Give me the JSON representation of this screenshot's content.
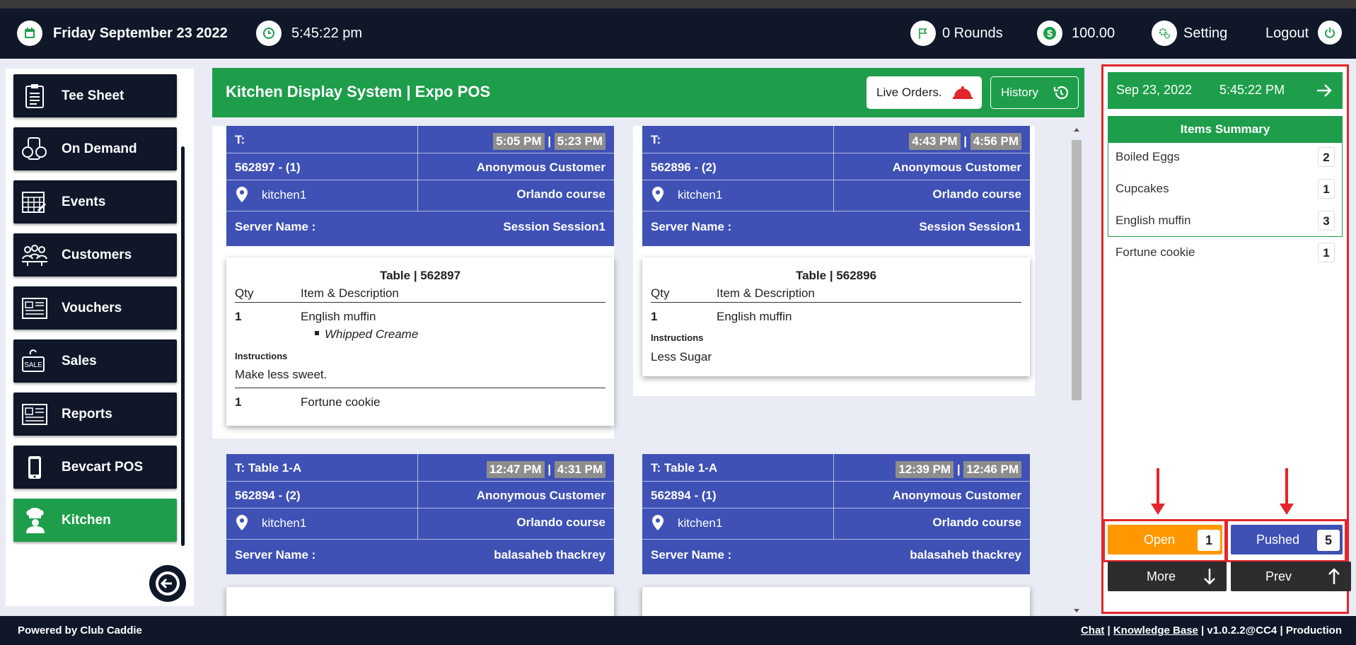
{
  "header": {
    "date": "Friday September 23 2022",
    "time": "5:45:22 pm",
    "rounds": "0 Rounds",
    "balance": "100.00",
    "setting_label": "Setting",
    "logout_label": "Logout"
  },
  "sidebar": {
    "items": [
      {
        "label": "Tee Sheet",
        "icon": "clipboard-icon"
      },
      {
        "label": "On Demand",
        "icon": "on-demand-icon"
      },
      {
        "label": "Events",
        "icon": "calendar-grid-icon"
      },
      {
        "label": "Customers",
        "icon": "customers-icon"
      },
      {
        "label": "Vouchers",
        "icon": "voucher-icon"
      },
      {
        "label": "Sales",
        "icon": "sale-tag-icon"
      },
      {
        "label": "Reports",
        "icon": "report-icon"
      },
      {
        "label": "Bevcart POS",
        "icon": "mobile-icon"
      },
      {
        "label": "Kitchen",
        "icon": "chef-icon",
        "active": true
      }
    ]
  },
  "main": {
    "title": "Kitchen Display System | Expo POS",
    "live_orders_label": "Live Orders.",
    "history_label": "History",
    "orders": [
      {
        "t": "T:",
        "time_in": "5:05 PM",
        "time_out": "5:23 PM",
        "order_id": "562897 - (1)",
        "customer": "Anonymous Customer",
        "location": "kitchen1",
        "course": "Orlando course",
        "server_label": "Server Name :",
        "server": "Session Session1",
        "ticket_title_prefix": "Table",
        "ticket_title_id": "562897",
        "qty_header": "Qty",
        "item_header": "Item & Description",
        "items": [
          {
            "qty": "1",
            "name": "English muffin",
            "modifier": "Whipped Creame"
          }
        ],
        "instructions_label": "Instructions",
        "instructions": "Make less sweet.",
        "extra_items": [
          {
            "qty": "1",
            "name": "Fortune cookie"
          }
        ]
      },
      {
        "t": "T:",
        "time_in": "4:43 PM",
        "time_out": "4:56 PM",
        "order_id": "562896 - (2)",
        "customer": "Anonymous Customer",
        "location": "kitchen1",
        "course": "Orlando course",
        "server_label": "Server Name :",
        "server": "Session Session1",
        "ticket_title_prefix": "Table",
        "ticket_title_id": "562896",
        "qty_header": "Qty",
        "item_header": "Item & Description",
        "items": [
          {
            "qty": "1",
            "name": "English muffin"
          }
        ],
        "instructions_label": "Instructions",
        "instructions": "Less Sugar"
      },
      {
        "t": "T: Table 1-A",
        "time_in": "12:47 PM",
        "time_out": "4:31 PM",
        "order_id": "562894 - (2)",
        "customer": "Anonymous Customer",
        "location": "kitchen1",
        "course": "Orlando course",
        "server_label": "Server Name :",
        "server": "balasaheb thackrey"
      },
      {
        "t": "T: Table 1-A",
        "time_in": "12:39 PM",
        "time_out": "12:46 PM",
        "order_id": "562894 - (1)",
        "customer": "Anonymous Customer",
        "location": "kitchen1",
        "course": "Orlando course",
        "server_label": "Server Name :",
        "server": "balasaheb thackrey"
      }
    ]
  },
  "right_panel": {
    "date": "Sep 23, 2022",
    "time": "5:45:22 PM",
    "summary_title": "Items Summary",
    "summary": [
      {
        "name": "Boiled Eggs",
        "qty": "2"
      },
      {
        "name": "Cupcakes",
        "qty": "1"
      },
      {
        "name": "English muffin",
        "qty": "3"
      },
      {
        "name": "Fortune cookie",
        "qty": "1"
      }
    ],
    "open_label": "Open",
    "open_count": "1",
    "pushed_label": "Pushed",
    "pushed_count": "5",
    "more_label": "More",
    "prev_label": "Prev"
  },
  "footer": {
    "powered": "Powered by Club Caddie",
    "chat": "Chat",
    "kb": "Knowledge Base",
    "version": "v1.0.2.2@CC4",
    "env": "Production",
    "sep": "|"
  },
  "colors": {
    "header_bg": "#0f1729",
    "green": "#1e9e4a",
    "order_blue": "#3f51b5",
    "open_orange": "#ff9800",
    "annotation_red": "#e3262b"
  }
}
